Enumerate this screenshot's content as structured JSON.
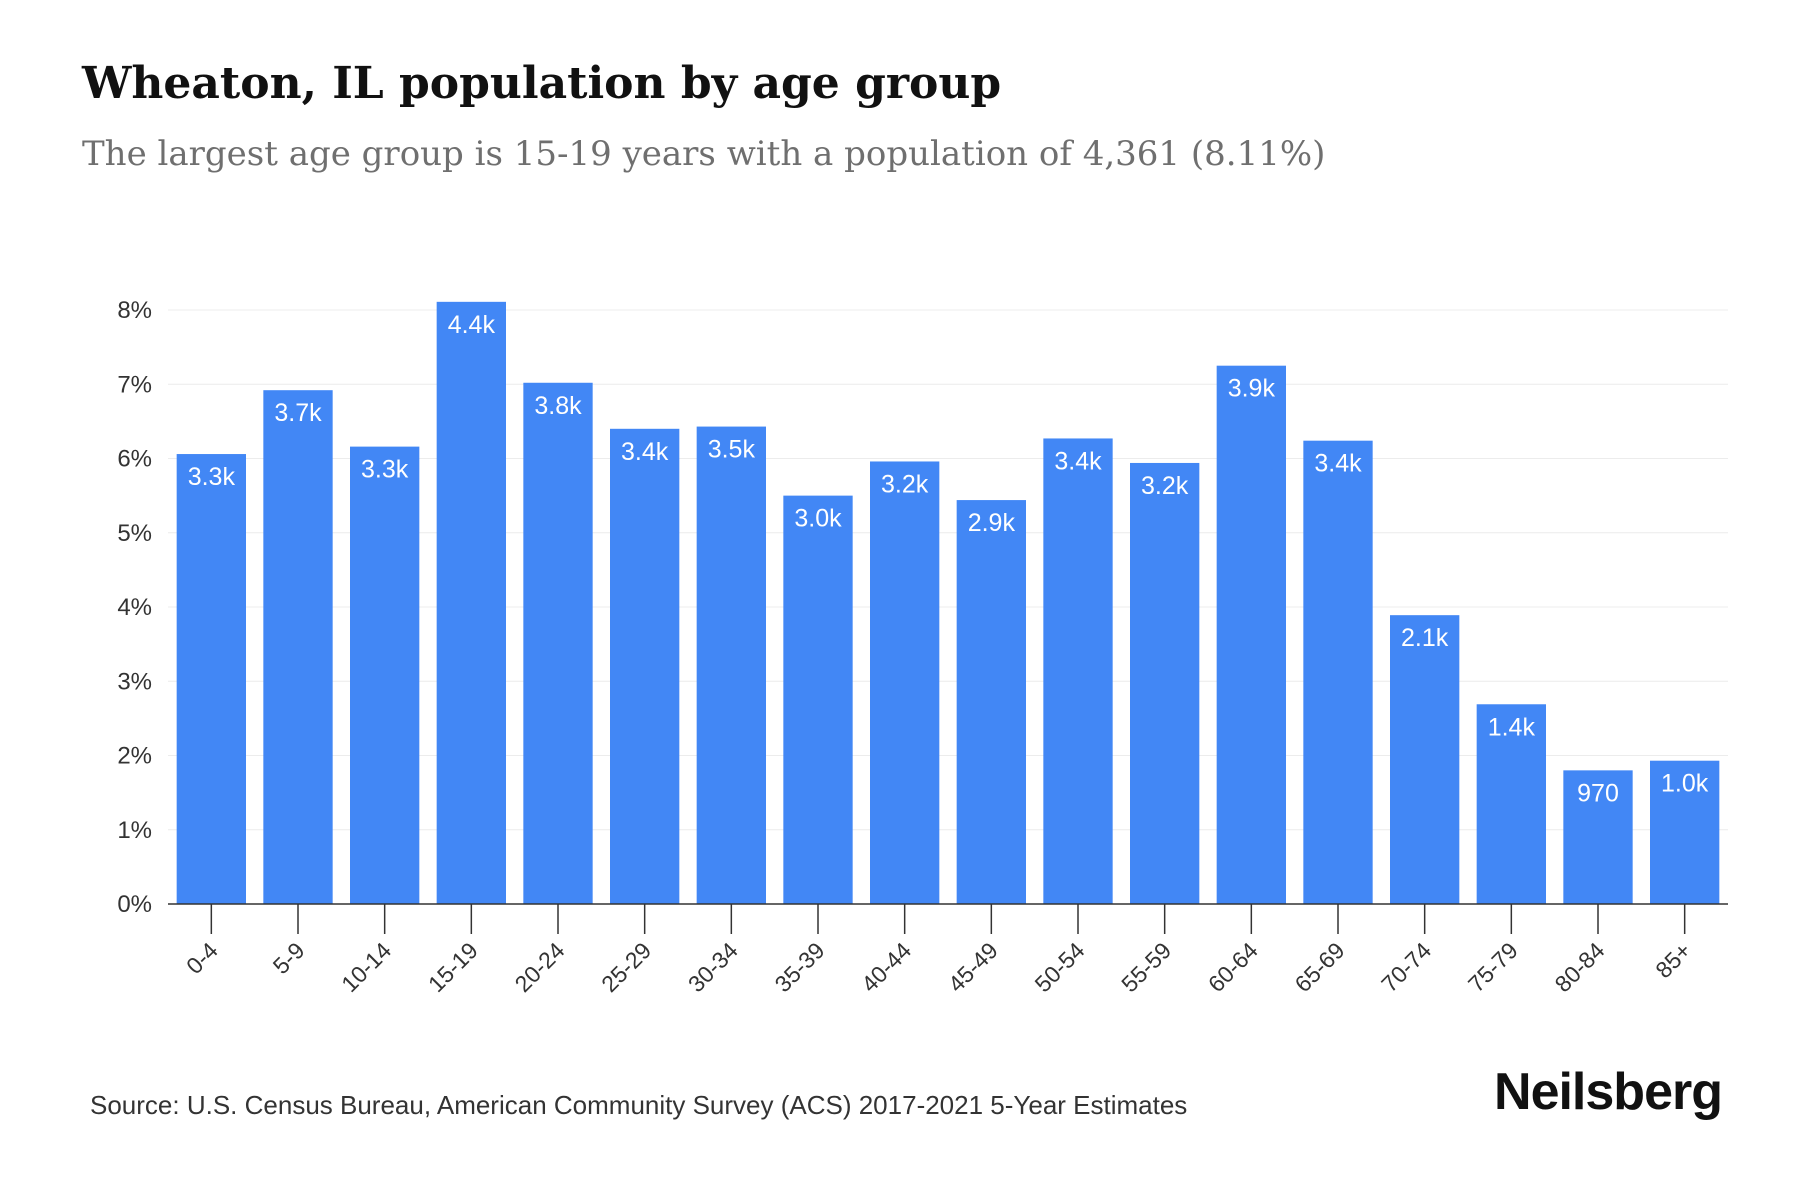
{
  "header": {
    "title": "Wheaton, IL population by age group",
    "subtitle": "The largest age group is 15-19 years with a population of 4,361 (8.11%)"
  },
  "footer": {
    "source": "Source: U.S. Census Bureau, American Community Survey (ACS) 2017-2021 5-Year Estimates",
    "brand": "Neilsberg"
  },
  "colors": {
    "bar": "#4287f5",
    "grid": "#ececec",
    "axis": "#333333"
  },
  "chart_data": {
    "type": "bar",
    "title": "Wheaton, IL population by age group",
    "subtitle": "The largest age group is 15-19 years with a population of 4,361 (8.11%)",
    "xlabel": "",
    "ylabel": "",
    "ylim": [
      0,
      8
    ],
    "ytick_values": [
      0,
      1,
      2,
      3,
      4,
      5,
      6,
      7,
      8
    ],
    "ytick_labels": [
      "0%",
      "1%",
      "2%",
      "3%",
      "4%",
      "5%",
      "6%",
      "7%",
      "8%"
    ],
    "grid": true,
    "categories": [
      "0-4",
      "5-9",
      "10-14",
      "15-19",
      "20-24",
      "25-29",
      "30-34",
      "35-39",
      "40-44",
      "45-49",
      "50-54",
      "55-59",
      "60-64",
      "65-69",
      "70-74",
      "75-79",
      "80-84",
      "85+"
    ],
    "values": [
      6.06,
      6.92,
      6.16,
      8.11,
      7.02,
      6.4,
      6.43,
      5.5,
      5.96,
      5.44,
      6.27,
      5.94,
      7.25,
      6.24,
      3.89,
      2.69,
      1.8,
      1.93
    ],
    "data_labels": [
      "3.3k",
      "3.7k",
      "3.3k",
      "4.4k",
      "3.8k",
      "3.4k",
      "3.5k",
      "3.0k",
      "3.2k",
      "2.9k",
      "3.4k",
      "3.2k",
      "3.9k",
      "3.4k",
      "2.1k",
      "1.4k",
      "970",
      "1.0k"
    ]
  }
}
